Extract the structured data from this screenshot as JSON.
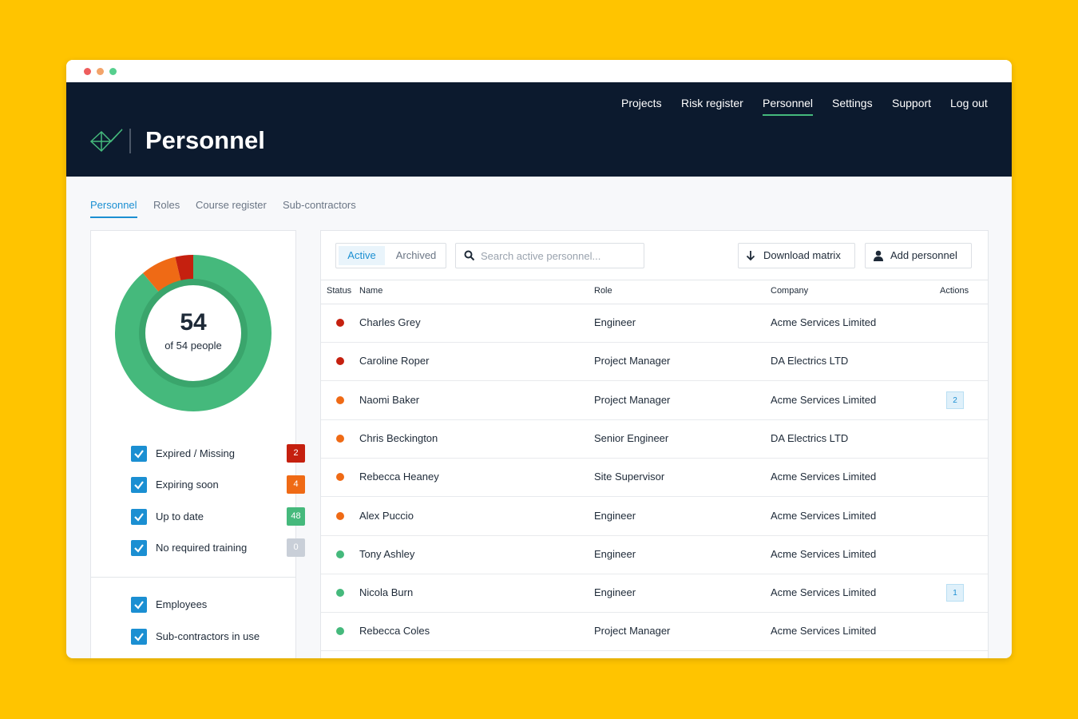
{
  "window": {
    "nav": [
      "Projects",
      "Risk register",
      "Personnel",
      "Settings",
      "Support",
      "Log out"
    ],
    "title": "Personnel",
    "tabs": [
      "Personnel",
      "Roles",
      "Course register",
      "Sub-contractors"
    ],
    "summary": {
      "total": "54",
      "caption": "of 54 people"
    },
    "filters": [
      {
        "label": "Expired / Missing",
        "count": 2,
        "color": "#c5200f"
      },
      {
        "label": "Expiring soon",
        "count": 4,
        "color": "#ef6a15"
      },
      {
        "label": "Up to date",
        "count": 48,
        "color": "#45b97c"
      },
      {
        "label": "No required training",
        "count": 0,
        "color": "#c9cfd8"
      }
    ],
    "groups": [
      "Employees",
      "Sub-contractors in use"
    ],
    "toggle": [
      "Active",
      "Archived"
    ],
    "search_placeholder": "Search active personnel...",
    "buttons": [
      "Download matrix",
      "Add personnel"
    ],
    "table": {
      "columns": [
        "Status",
        "Name",
        "Role",
        "Company",
        "Actions"
      ],
      "rows": [
        {
          "status_color": "#c5200f",
          "name": "Charles Grey",
          "role": "Engineer",
          "company": "Acme Services Limited"
        },
        {
          "status_color": "#c5200f",
          "name": "Caroline Roper",
          "role": "Project Manager",
          "company": "DA Electrics LTD"
        },
        {
          "status_color": "#ef6a15",
          "name": "Naomi Baker",
          "role": "Project Manager",
          "company": "Acme Services Limited",
          "actions": 2
        },
        {
          "status_color": "#ef6a15",
          "name": "Chris Beckington",
          "role": "Senior Engineer",
          "company": "DA Electrics LTD"
        },
        {
          "status_color": "#ef6a15",
          "name": "Rebecca Heaney",
          "role": "Site Supervisor",
          "company": "Acme Services Limited"
        },
        {
          "status_color": "#ef6a15",
          "name": "Alex Puccio",
          "role": "Engineer",
          "company": "Acme Services Limited"
        },
        {
          "status_color": "#45b97c",
          "name": "Tony Ashley",
          "role": "Engineer",
          "company": "Acme Services Limited"
        },
        {
          "status_color": "#45b97c",
          "name": "Nicola Burn",
          "role": "Engineer",
          "company": "Acme Services Limited",
          "actions": 1
        },
        {
          "status_color": "#45b97c",
          "name": "Rebecca Coles",
          "role": "Project Manager",
          "company": "Acme Services Limited"
        }
      ]
    }
  }
}
